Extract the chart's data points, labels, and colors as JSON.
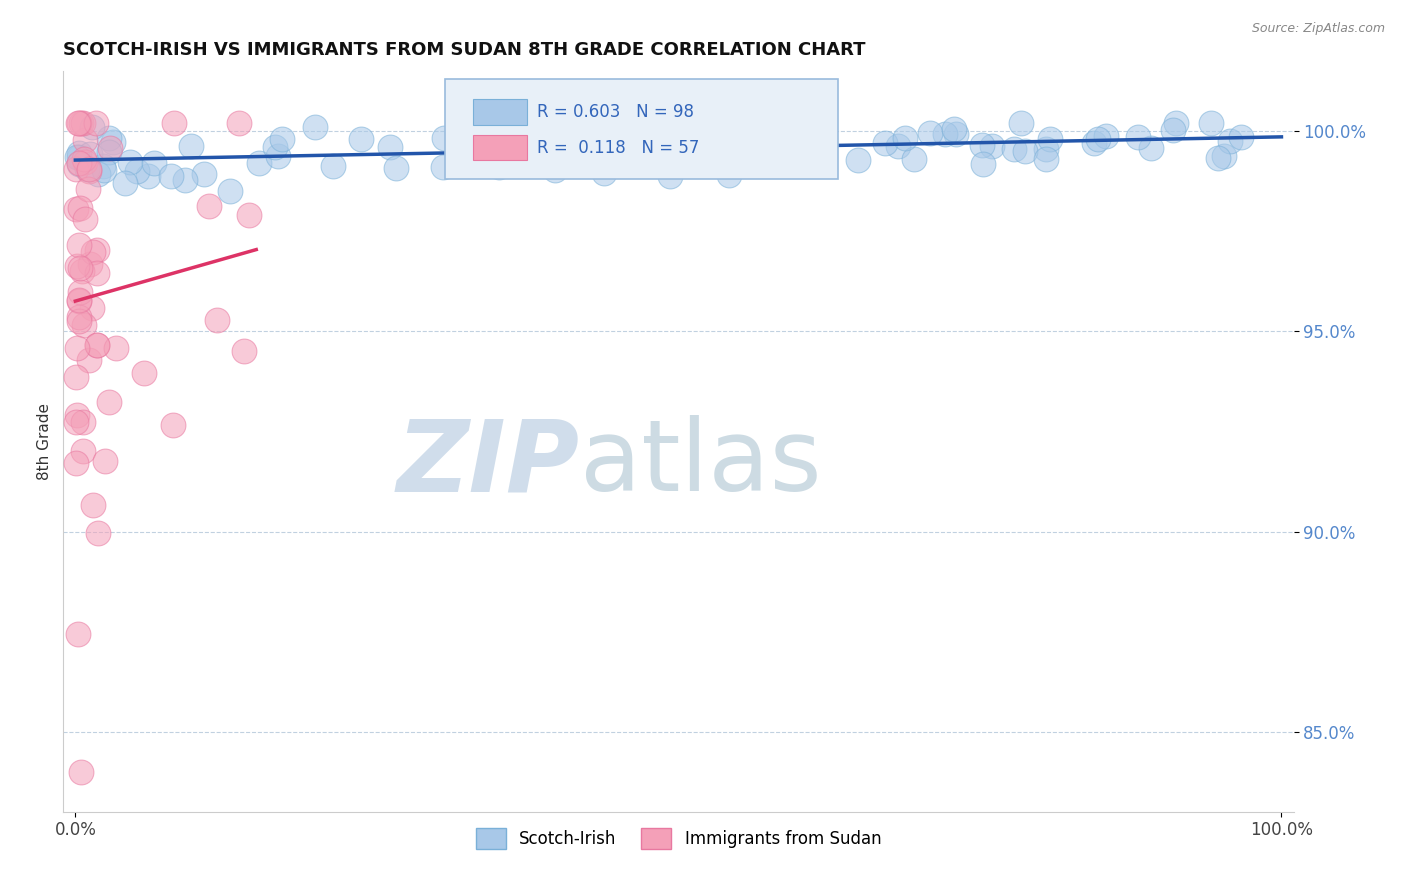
{
  "title": "SCOTCH-IRISH VS IMMIGRANTS FROM SUDAN 8TH GRADE CORRELATION CHART",
  "source": "Source: ZipAtlas.com",
  "ylabel": "8th Grade",
  "blue_R": 0.603,
  "blue_N": 98,
  "pink_R": 0.118,
  "pink_N": 57,
  "blue_color": "#a8c8e8",
  "pink_color": "#f4a0b8",
  "blue_edge_color": "#7ab0d8",
  "pink_edge_color": "#e878a0",
  "blue_line_color": "#2255aa",
  "pink_line_color": "#dd3366",
  "watermark_zip_color": "#c8d8e8",
  "watermark_atlas_color": "#b8ccd8",
  "legend_box_color": "#e8f0f8",
  "legend_border_color": "#99bbdd",
  "y_ticks": [
    85.0,
    90.0,
    95.0,
    100.0
  ],
  "y_tick_labels": [
    "85.0%",
    "90.0%",
    "95.0%",
    "100.0%"
  ],
  "ylim_min": 83.0,
  "ylim_max": 101.5,
  "xlim_min": -1.0,
  "xlim_max": 101.0
}
